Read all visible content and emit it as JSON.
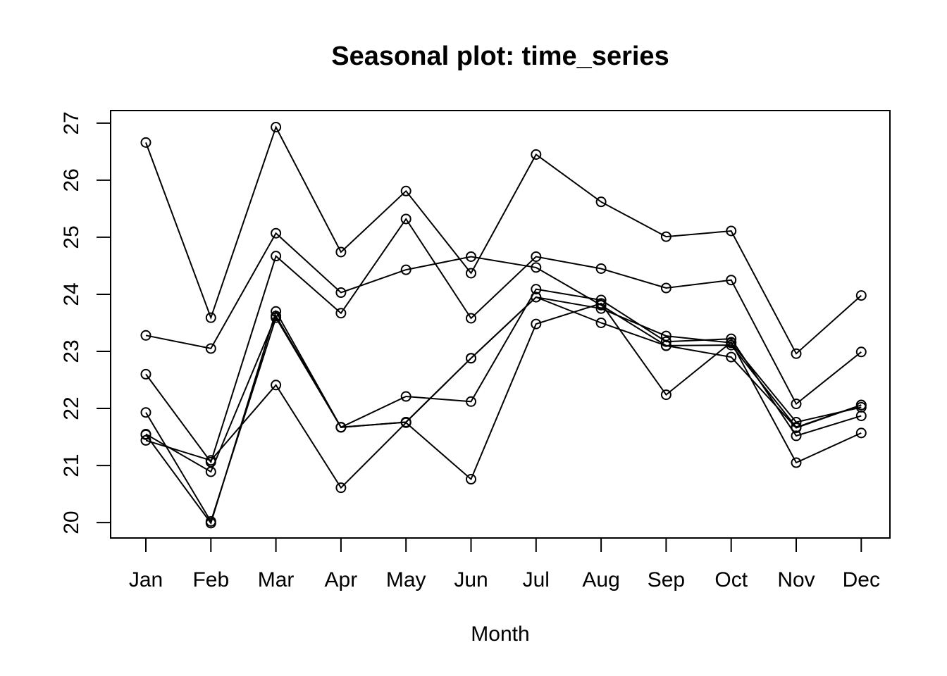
{
  "chart_data": {
    "type": "line",
    "title": "Seasonal plot: time_series",
    "xlabel": "Month",
    "ylabel": "",
    "categories": [
      "Jan",
      "Feb",
      "Mar",
      "Apr",
      "May",
      "Jun",
      "Jul",
      "Aug",
      "Sep",
      "Oct",
      "Nov",
      "Dec"
    ],
    "yticks": [
      20,
      21,
      22,
      23,
      24,
      25,
      26,
      27
    ],
    "ylim": [
      19.73,
      27.22
    ],
    "grid": false,
    "legend": "none",
    "series": [
      {
        "values": [
          26.66,
          23.59,
          26.93,
          24.74,
          25.81,
          24.37,
          26.45,
          25.62,
          25.01,
          25.11,
          22.96,
          23.98
        ]
      },
      {
        "values": [
          23.28,
          23.05,
          25.07,
          24.03,
          24.43,
          24.66,
          24.47,
          23.81,
          23.1,
          23.11,
          21.67,
          22.06
        ]
      },
      {
        "values": [
          22.6,
          21.06,
          24.67,
          23.67,
          25.32,
          23.58,
          24.66,
          24.45,
          24.11,
          24.25,
          22.08,
          22.99
        ]
      },
      {
        "values": [
          21.93,
          20.02,
          23.59,
          21.67,
          21.76,
          22.88,
          23.95,
          23.75,
          23.27,
          23.15,
          21.76,
          22.02
        ]
      },
      {
        "values": [
          21.54,
          19.99,
          23.7,
          21.67,
          22.21,
          22.12,
          24.09,
          23.9,
          23.17,
          23.22,
          21.52,
          21.87
        ]
      },
      {
        "values": [
          21.44,
          21.09,
          22.41,
          20.61,
          21.75,
          20.76,
          23.48,
          23.84,
          22.24,
          23.16,
          21.05,
          21.57
        ]
      },
      {
        "values": [
          21.55,
          20.89,
          23.62,
          21.67,
          21.76,
          22.88,
          23.95,
          23.5,
          23.1,
          22.9,
          21.66,
          22.06
        ]
      }
    ],
    "colors": {
      "line": "#000000",
      "marker": "#000000",
      "background": "#ffffff"
    }
  }
}
